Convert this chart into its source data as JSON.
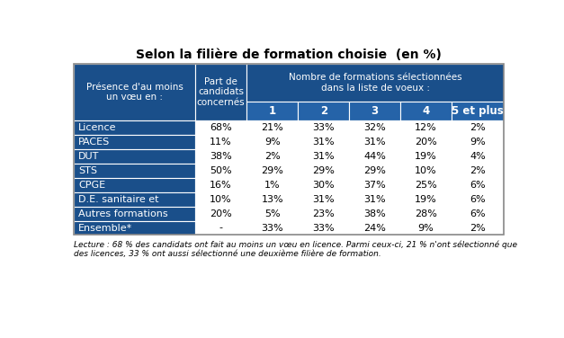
{
  "title": "Selon la filière de formation choisie  (en %)",
  "header_col0": "Présence d'au moins\nun vœu en :",
  "header_col1": "Part de\ncandidats\nconcernés",
  "header_span_top": "Nombre de formations sélectionnées\ndans la liste de voeux :",
  "col_numbers": [
    "1",
    "2",
    "3",
    "4",
    "5 et plus"
  ],
  "rows": [
    {
      "label": "Licence",
      "part": "68%",
      "vals": [
        "21%",
        "33%",
        "32%",
        "12%",
        "2%"
      ]
    },
    {
      "label": "PACES",
      "part": "11%",
      "vals": [
        "9%",
        "31%",
        "31%",
        "20%",
        "9%"
      ]
    },
    {
      "label": "DUT",
      "part": "38%",
      "vals": [
        "2%",
        "31%",
        "44%",
        "19%",
        "4%"
      ]
    },
    {
      "label": "STS",
      "part": "50%",
      "vals": [
        "29%",
        "29%",
        "29%",
        "10%",
        "2%"
      ]
    },
    {
      "label": "CPGE",
      "part": "16%",
      "vals": [
        "1%",
        "30%",
        "37%",
        "25%",
        "6%"
      ]
    },
    {
      "label": "D.E. sanitaire et",
      "part": "10%",
      "vals": [
        "13%",
        "31%",
        "31%",
        "19%",
        "6%"
      ]
    },
    {
      "label": "Autres formations",
      "part": "20%",
      "vals": [
        "5%",
        "23%",
        "38%",
        "28%",
        "6%"
      ]
    },
    {
      "label": "Ensemble*",
      "part": "-",
      "vals": [
        "33%",
        "33%",
        "24%",
        "9%",
        "2%"
      ]
    }
  ],
  "footer_line1": "Lecture : 68 % des candidats ont fait au moins un vœu en licence. Parmi ceux-ci, 21 % n'ont sélectionné que",
  "footer_line2": "des licences, 33 % ont aussi sélectionné une deuxième filière de formation.",
  "header_dark_bg": "#1a4f8a",
  "header_mid_bg": "#2563a8",
  "label_bg": "#1a4f8a",
  "label_text": "white",
  "data_bg": "white",
  "data_text": "black",
  "border_color": "white",
  "outer_border": "#888888"
}
